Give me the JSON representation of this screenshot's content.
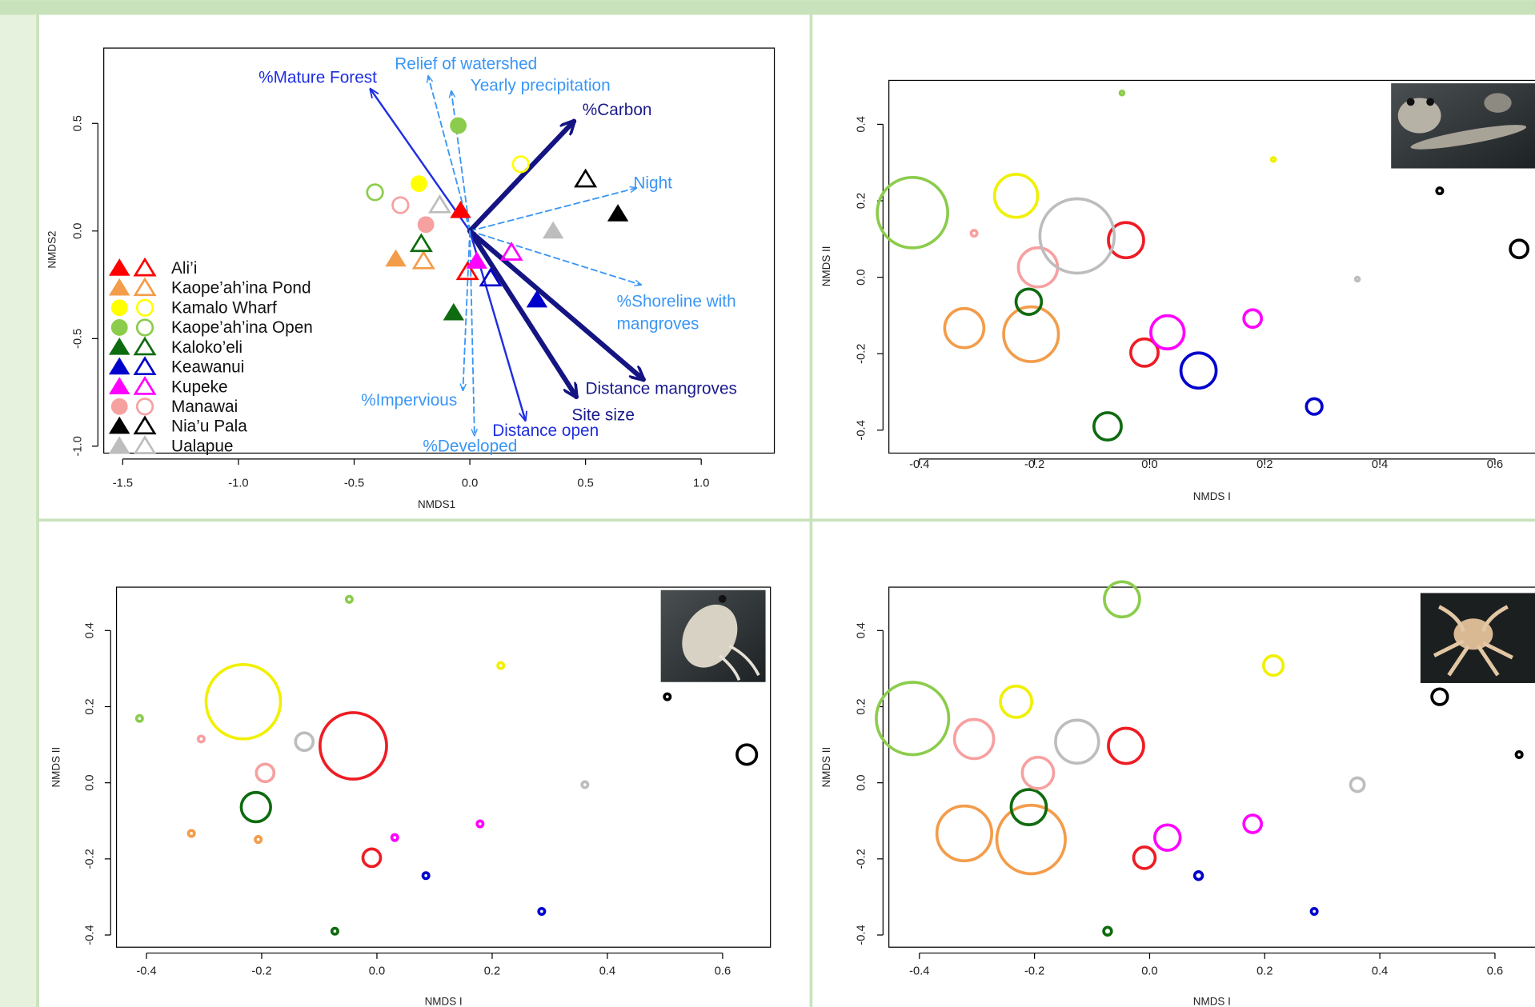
{
  "chart_data": [
    {
      "type": "biplot",
      "xlabel": "NMDS1",
      "ylabel": "NMDS2",
      "xlim": [
        -1.582,
        1.316
      ],
      "ylim": [
        -1.032,
        0.85
      ],
      "xticks": [
        -1.5,
        {
          "value": -1,
          "label": "-1.0"
        },
        -0.5,
        {
          "value": 0,
          "label": "0.0"
        },
        0.5,
        {
          "value": 1,
          "label": "1.0"
        }
      ],
      "yticks": [
        {
          "value": -1,
          "label": "-1.0"
        },
        -0.5,
        {
          "value": 0,
          "label": "0.0"
        },
        0.5
      ],
      "series": [
        {
          "name": "Ali’i",
          "color": "#ff0000",
          "marker": "triangle",
          "x": [
            -0.04,
            -0.01
          ],
          "values": [
            0.095,
            -0.19
          ]
        },
        {
          "name": "Kaope’ah’ina Pond",
          "color": "#f39c4a",
          "marker": "triangle",
          "x": [
            -0.32,
            -0.2
          ],
          "values": [
            -0.13,
            -0.14
          ]
        },
        {
          "name": "Kamalo Wharf",
          "color": "#ffff00",
          "marker": "circle",
          "x": [
            -0.22,
            0.22
          ],
          "values": [
            0.22,
            0.31
          ]
        },
        {
          "name": "Kaope’ah’ina Open",
          "color": "#8ccc4c",
          "marker": "circle",
          "x": [
            -0.05,
            -0.41
          ],
          "values": [
            0.49,
            0.18
          ]
        },
        {
          "name": "Kaloko’eli",
          "color": "#0f6b0f",
          "marker": "triangle",
          "x": [
            -0.07,
            -0.21
          ],
          "values": [
            -0.38,
            -0.06
          ]
        },
        {
          "name": "Keawanui",
          "color": "#0000cc",
          "marker": "triangle",
          "x": [
            0.29,
            0.09
          ],
          "values": [
            -0.32,
            -0.22
          ]
        },
        {
          "name": "Kupeke",
          "color": "#ff00ff",
          "marker": "triangle",
          "x": [
            0.03,
            0.18
          ],
          "values": [
            -0.14,
            -0.1
          ]
        },
        {
          "name": "Manawai",
          "color": "#f7a0a0",
          "marker": "circle",
          "x": [
            -0.19,
            -0.3
          ],
          "values": [
            0.03,
            0.12
          ]
        },
        {
          "name": "Nia’u Pala",
          "color": "#000000",
          "marker": "triangle",
          "x": [
            0.64,
            0.5
          ],
          "values": [
            0.08,
            0.24
          ]
        },
        {
          "name": "Ualapue",
          "color": "#bdbdbd",
          "marker": "triangle",
          "x": [
            0.36,
            -0.13
          ],
          "values": [
            0.0,
            0.12
          ]
        }
      ],
      "vectors": [
        {
          "label": "%Mature Forest",
          "x": -0.43,
          "y": 0.66,
          "style": "solid"
        },
        {
          "label": "Relief of watershed",
          "x": -0.18,
          "y": 0.72,
          "style": "dashed"
        },
        {
          "label": "Yearly precipitation",
          "x": -0.08,
          "y": 0.65,
          "style": "dashed"
        },
        {
          "label": "%Carbon",
          "x": 0.45,
          "y": 0.51,
          "style": "thick"
        },
        {
          "label": "Night",
          "x": 0.72,
          "y": 0.2,
          "style": "dashed"
        },
        {
          "label": [
            "%Shoreline with",
            "mangroves"
          ],
          "x": 0.74,
          "y": -0.25,
          "style": "dashed"
        },
        {
          "label": "Distance mangroves",
          "x": 0.75,
          "y": -0.69,
          "style": "thick"
        },
        {
          "label": "Site size",
          "x": 0.46,
          "y": -0.77,
          "style": "thick"
        },
        {
          "label": "Distance open",
          "x": 0.24,
          "y": -0.88,
          "style": "solid"
        },
        {
          "label": "%Impervious",
          "x": -0.03,
          "y": -0.74,
          "style": "dashed"
        },
        {
          "label": "%Developed",
          "x": 0.02,
          "y": -0.95,
          "style": "dashed"
        }
      ]
    },
    {
      "type": "bubble",
      "xlabel": "NMDS I",
      "ylabel": "NMDS II",
      "xlim": [
        -0.453,
        0.69
      ],
      "ylim": [
        -0.46,
        0.515
      ],
      "xticks": [
        -0.4,
        -0.2,
        {
          "value": 0,
          "label": "0.0"
        },
        0.2,
        0.4,
        0.6
      ],
      "yticks": [
        -0.4,
        -0.2,
        {
          "value": 0,
          "label": "0.0"
        },
        0.2,
        0.4
      ],
      "series": [
        {
          "color": "#ee1c24",
          "x": [
            -0.041,
            -0.009
          ],
          "values": [
            0.097,
            -0.197
          ],
          "sizes": [
            18,
            14
          ]
        },
        {
          "color": "#f39c4a",
          "x": [
            -0.322,
            -0.206
          ],
          "values": [
            -0.133,
            -0.149
          ],
          "sizes": [
            20,
            28
          ]
        },
        {
          "color": "#f0f000",
          "x": [
            -0.232,
            0.215
          ],
          "values": [
            0.213,
            0.308
          ],
          "sizes": [
            22,
            2
          ]
        },
        {
          "color": "#8ccc4c",
          "x": [
            -0.412,
            -0.048
          ],
          "values": [
            0.169,
            0.482
          ],
          "sizes": [
            36,
            2
          ]
        },
        {
          "color": "#0f6b0f",
          "x": [
            -0.21,
            -0.073
          ],
          "values": [
            -0.064,
            -0.39
          ],
          "sizes": [
            13,
            14
          ]
        },
        {
          "color": "#0000cc",
          "x": [
            0.085,
            0.286
          ],
          "values": [
            -0.244,
            -0.338
          ],
          "sizes": [
            18,
            8
          ]
        },
        {
          "color": "#ff00ff",
          "x": [
            0.031,
            0.179
          ],
          "values": [
            -0.144,
            -0.108
          ],
          "sizes": [
            17,
            9
          ]
        },
        {
          "color": "#f7a0a0",
          "x": [
            -0.305,
            -0.194
          ],
          "values": [
            0.115,
            0.026
          ],
          "sizes": [
            3,
            20
          ]
        },
        {
          "color": "#000000",
          "x": [
            0.504,
            0.642
          ],
          "values": [
            0.226,
            0.074
          ],
          "sizes": [
            3,
            9
          ]
        },
        {
          "color": "#bdbdbd",
          "x": [
            -0.126,
            0.361
          ],
          "values": [
            0.108,
            -0.005
          ],
          "sizes": [
            38,
            2
          ]
        }
      ]
    },
    {
      "type": "bubble",
      "xlabel": "NMDS I",
      "ylabel": "NMDS II",
      "xlim": [
        -0.452,
        0.683
      ],
      "ylim": [
        -0.432,
        0.514
      ],
      "xticks": [
        -0.4,
        -0.2,
        {
          "value": 0,
          "label": "0.0"
        },
        0.2,
        0.4,
        0.6
      ],
      "yticks": [
        -0.4,
        -0.2,
        {
          "value": 0,
          "label": "0.0"
        },
        0.2,
        0.4
      ],
      "series": [
        {
          "color": "#ee1c24",
          "x": [
            -0.041,
            -0.009
          ],
          "values": [
            0.097,
            -0.197
          ],
          "sizes": [
            34,
            9
          ]
        },
        {
          "color": "#f39c4a",
          "x": [
            -0.322,
            -0.206
          ],
          "values": [
            -0.133,
            -0.149
          ],
          "sizes": [
            3,
            3
          ]
        },
        {
          "color": "#f0f000",
          "x": [
            -0.232,
            0.215
          ],
          "values": [
            0.213,
            0.308
          ],
          "sizes": [
            38,
            3
          ]
        },
        {
          "color": "#8ccc4c",
          "x": [
            -0.412,
            -0.048
          ],
          "values": [
            0.169,
            0.482
          ],
          "sizes": [
            3,
            3
          ]
        },
        {
          "color": "#0f6b0f",
          "x": [
            -0.21,
            -0.073
          ],
          "values": [
            -0.064,
            -0.39
          ],
          "sizes": [
            15,
            3
          ]
        },
        {
          "color": "#0000cc",
          "x": [
            0.085,
            0.286
          ],
          "values": [
            -0.244,
            -0.338
          ],
          "sizes": [
            3,
            3
          ]
        },
        {
          "color": "#ff00ff",
          "x": [
            0.031,
            0.179
          ],
          "values": [
            -0.144,
            -0.108
          ],
          "sizes": [
            3,
            3
          ]
        },
        {
          "color": "#f7a0a0",
          "x": [
            -0.305,
            -0.194
          ],
          "values": [
            0.115,
            0.026
          ],
          "sizes": [
            3,
            9
          ]
        },
        {
          "color": "#000000",
          "x": [
            0.504,
            0.642
          ],
          "values": [
            0.226,
            0.074
          ],
          "sizes": [
            3,
            10
          ]
        },
        {
          "color": "#bdbdbd",
          "x": [
            -0.126,
            0.361
          ],
          "values": [
            0.108,
            -0.005
          ],
          "sizes": [
            9,
            3
          ]
        }
      ]
    },
    {
      "type": "bubble",
      "xlabel": "NMDS I",
      "ylabel": "NMDS II",
      "xlim": [
        -0.453,
        0.69
      ],
      "ylim": [
        -0.432,
        0.514
      ],
      "xticks": [
        -0.4,
        -0.2,
        {
          "value": 0,
          "label": "0.0"
        },
        0.2,
        0.4,
        0.6
      ],
      "yticks": [
        -0.4,
        -0.2,
        {
          "value": 0,
          "label": "0.0"
        },
        0.2,
        0.4
      ],
      "series": [
        {
          "color": "#ee1c24",
          "x": [
            -0.041,
            -0.009
          ],
          "values": [
            0.097,
            -0.197
          ],
          "sizes": [
            18,
            11
          ]
        },
        {
          "color": "#f39c4a",
          "x": [
            -0.322,
            -0.206
          ],
          "values": [
            -0.133,
            -0.149
          ],
          "sizes": [
            28,
            35
          ]
        },
        {
          "color": "#f0f000",
          "x": [
            -0.232,
            0.215
          ],
          "values": [
            0.213,
            0.308
          ],
          "sizes": [
            16,
            10
          ]
        },
        {
          "color": "#8ccc4c",
          "x": [
            -0.412,
            -0.048
          ],
          "values": [
            0.169,
            0.482
          ],
          "sizes": [
            37,
            18
          ]
        },
        {
          "color": "#0f6b0f",
          "x": [
            -0.21,
            -0.073
          ],
          "values": [
            -0.064,
            -0.39
          ],
          "sizes": [
            18,
            4
          ]
        },
        {
          "color": "#0000cc",
          "x": [
            0.085,
            0.286
          ],
          "values": [
            -0.244,
            -0.338
          ],
          "sizes": [
            4,
            3
          ]
        },
        {
          "color": "#ff00ff",
          "x": [
            0.031,
            0.179
          ],
          "values": [
            -0.144,
            -0.108
          ],
          "sizes": [
            13,
            9
          ]
        },
        {
          "color": "#f7a0a0",
          "x": [
            -0.305,
            -0.194
          ],
          "values": [
            0.115,
            0.026
          ],
          "sizes": [
            20,
            16
          ]
        },
        {
          "color": "#000000",
          "x": [
            0.504,
            0.642
          ],
          "values": [
            0.226,
            0.074
          ],
          "sizes": [
            8,
            3
          ]
        },
        {
          "color": "#bdbdbd",
          "x": [
            -0.126,
            0.361
          ],
          "values": [
            0.108,
            -0.005
          ],
          "sizes": [
            22,
            7
          ]
        }
      ]
    }
  ]
}
